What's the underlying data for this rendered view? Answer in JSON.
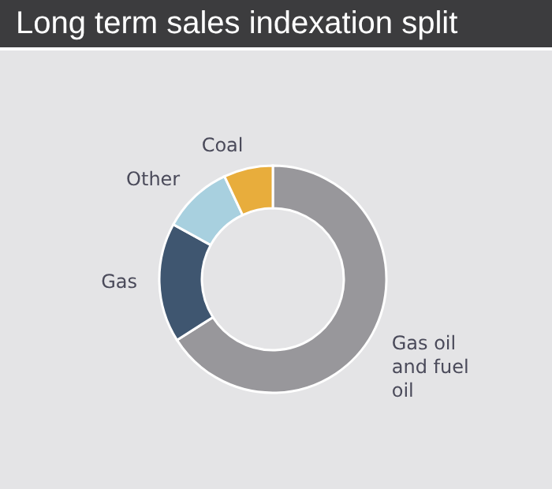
{
  "chart_data": {
    "type": "donut",
    "title": "Long term sales indexation split",
    "categories": [
      "Gas oil and fuel oil",
      "Gas",
      "Other",
      "Coal"
    ],
    "values": [
      66,
      17,
      10,
      7
    ],
    "colors": [
      "#98979b",
      "#3f5670",
      "#a8d0df",
      "#e8ad3c"
    ]
  }
}
